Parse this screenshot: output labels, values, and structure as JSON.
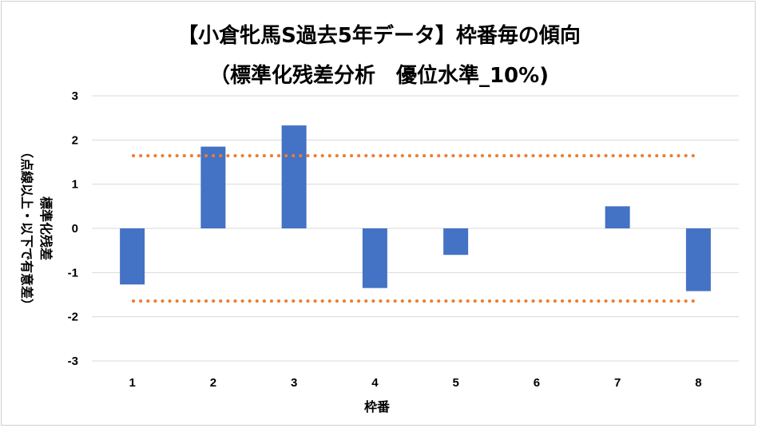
{
  "chart_data": {
    "type": "bar",
    "title": "【小倉牝馬S過去5年データ】枠番毎の傾向",
    "subtitle": "（標準化残差分析　優位水準_10%)",
    "xlabel": "枠番",
    "ylabel_main": "標準化残差",
    "ylabel_note": "（点線以上・以下で有意差）",
    "categories": [
      "1",
      "2",
      "3",
      "4",
      "5",
      "6",
      "7",
      "8"
    ],
    "values": [
      -1.27,
      1.85,
      2.33,
      -1.35,
      -0.6,
      0,
      0.5,
      -1.42
    ],
    "ylim": [
      -3,
      3
    ],
    "yticks": [
      3,
      2,
      1,
      0,
      -1,
      -2,
      -3
    ],
    "thresholds": [
      1.645,
      -1.645
    ],
    "grid": true,
    "legend": "none",
    "bar_color": "#4472c4",
    "threshold_color": "#ed7d31",
    "grid_color": "#d9d9d9"
  }
}
